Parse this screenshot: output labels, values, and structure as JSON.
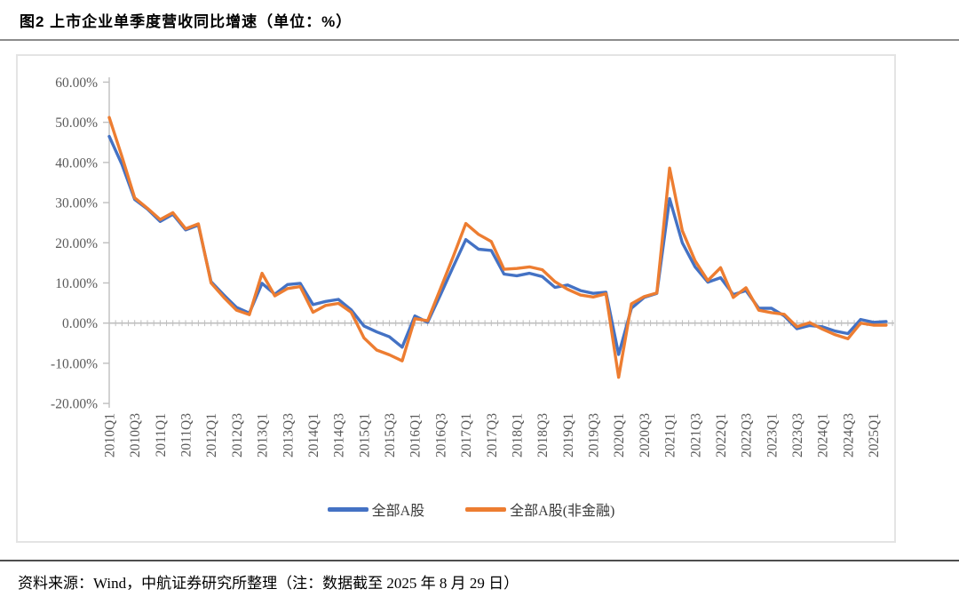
{
  "page": {
    "title": "图2 上市企业单季度营收同比增速（单位：%）",
    "source_note": "资料来源：Wind，中航证券研究所整理（注：数据截至 2025 年 8 月 29 日）"
  },
  "colors": {
    "series1": "#4472C4",
    "series2": "#ED7D31",
    "axis_line": "#BFBFBF",
    "tick_label": "#595959",
    "chart_border": "#E4E4E4",
    "divider_top": "#8C8C8C",
    "divider_bottom": "#4D4D4D"
  },
  "chart_data": {
    "type": "line",
    "title": "",
    "xlabel": "",
    "ylabel": "",
    "ylim": [
      -20,
      60
    ],
    "y_step": 10,
    "grid": false,
    "legend_position": "bottom",
    "y_tick_labels": [
      "60.00%",
      "50.00%",
      "40.00%",
      "30.00%",
      "20.00%",
      "10.00%",
      "0.00%",
      "-10.00%",
      "-20.00%"
    ],
    "x_tick_labels": [
      "2010Q1",
      "2010Q3",
      "2011Q1",
      "2011Q3",
      "2012Q1",
      "2012Q3",
      "2013Q1",
      "2013Q3",
      "2014Q1",
      "2014Q3",
      "2015Q1",
      "2015Q3",
      "2016Q1",
      "2016Q3",
      "2017Q1",
      "2017Q3",
      "2018Q1",
      "2018Q3",
      "2019Q1",
      "2019Q3",
      "2020Q1",
      "2020Q3",
      "2021Q1",
      "2021Q3",
      "2022Q1",
      "2022Q3",
      "2023Q1",
      "2023Q3",
      "2024Q1",
      "2024Q3",
      "2025Q1"
    ],
    "categories": [
      "2010Q1",
      "2010Q2",
      "2010Q3",
      "2010Q4",
      "2011Q1",
      "2011Q2",
      "2011Q3",
      "2011Q4",
      "2012Q1",
      "2012Q2",
      "2012Q3",
      "2012Q4",
      "2013Q1",
      "2013Q2",
      "2013Q3",
      "2013Q4",
      "2014Q1",
      "2014Q2",
      "2014Q3",
      "2014Q4",
      "2015Q1",
      "2015Q2",
      "2015Q3",
      "2015Q4",
      "2016Q1",
      "2016Q2",
      "2016Q3",
      "2016Q4",
      "2017Q1",
      "2017Q2",
      "2017Q3",
      "2017Q4",
      "2018Q1",
      "2018Q2",
      "2018Q3",
      "2018Q4",
      "2019Q1",
      "2019Q2",
      "2019Q3",
      "2019Q4",
      "2020Q1",
      "2020Q2",
      "2020Q3",
      "2020Q4",
      "2021Q1",
      "2021Q2",
      "2021Q3",
      "2021Q4",
      "2022Q1",
      "2022Q2",
      "2022Q3",
      "2022Q4",
      "2023Q1",
      "2023Q2",
      "2023Q3",
      "2023Q4",
      "2024Q1",
      "2024Q2",
      "2024Q3",
      "2024Q4",
      "2025Q1",
      "2025Q2"
    ],
    "series": [
      {
        "name": "全部A股",
        "color": "#4472C4",
        "values": [
          46.5,
          39.5,
          30.8,
          28.4,
          25.3,
          27.1,
          23.2,
          24.4,
          10.3,
          7.0,
          3.9,
          2.5,
          9.9,
          7.2,
          9.6,
          9.9,
          4.6,
          5.4,
          5.9,
          3.3,
          -0.7,
          -2.2,
          -3.4,
          -6.0,
          1.8,
          0.2,
          7.0,
          14.0,
          20.8,
          18.4,
          18.1,
          12.2,
          11.8,
          12.4,
          11.6,
          8.9,
          9.5,
          8.1,
          7.4,
          7.7,
          -7.8,
          3.7,
          6.4,
          7.4,
          31.0,
          20.0,
          14.0,
          10.2,
          11.3,
          7.1,
          8.1,
          3.7,
          3.7,
          1.8,
          -1.4,
          -0.6,
          -0.9,
          -2.0,
          -2.6,
          0.9,
          0.2,
          0.4
        ]
      },
      {
        "name": "全部A股(非金融)",
        "color": "#ED7D31",
        "values": [
          51.2,
          41.5,
          31.2,
          28.6,
          25.8,
          27.5,
          23.5,
          24.7,
          10.0,
          6.4,
          3.2,
          2.1,
          12.4,
          6.8,
          8.6,
          9.1,
          2.7,
          4.4,
          4.9,
          2.7,
          -3.7,
          -6.7,
          -7.9,
          -9.4,
          1.1,
          0.6,
          8.5,
          16.5,
          24.8,
          22.1,
          20.3,
          13.4,
          13.6,
          14.0,
          13.3,
          10.3,
          8.4,
          7.0,
          6.5,
          7.3,
          -13.5,
          4.8,
          6.6,
          7.5,
          38.6,
          23.0,
          15.5,
          10.6,
          13.8,
          6.4,
          8.8,
          3.2,
          2.6,
          2.2,
          -0.9,
          0.1,
          -1.5,
          -2.9,
          -3.9,
          0.0,
          -0.5,
          -0.5
        ]
      }
    ]
  }
}
